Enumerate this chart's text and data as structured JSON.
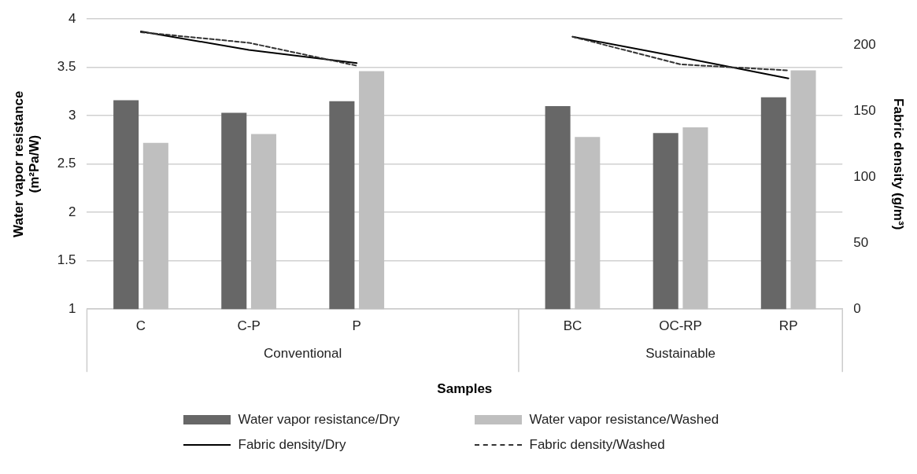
{
  "chart_data": {
    "type": "bar",
    "xlabel": "Samples",
    "ylabel": "Water vapor resistance (m²Pa/W)",
    "y2label": "Fabric density (g/m³)",
    "categories": [
      "C",
      "C-P",
      "P",
      null,
      "BC",
      "OC-RP",
      "RP"
    ],
    "annotations": [
      "Conventional",
      "Sustainable"
    ],
    "series": [
      {
        "name": "Water vapor resistance/Dry",
        "color": "#676767",
        "values": [
          3.16,
          3.03,
          3.15,
          null,
          3.1,
          2.82,
          3.19
        ]
      },
      {
        "name": "Water vapor resistance/Washed",
        "color": "#bfbfbf",
        "values": [
          2.72,
          2.81,
          3.46,
          null,
          2.78,
          2.88,
          3.47
        ]
      },
      {
        "name": "Fabric density/Dry",
        "type": "line",
        "axis": "y2",
        "color": "#000000",
        "line_style": "solid",
        "values": [
          210.6,
          196.6,
          186.6,
          null,
          206.6,
          191,
          175
        ]
      },
      {
        "name": "Fabric density/Washed",
        "type": "line",
        "axis": "y2",
        "color": "#333333",
        "line_style": "dashed",
        "values": [
          210,
          202,
          184.6,
          null,
          206.6,
          185.6,
          181
        ]
      }
    ],
    "ylim": [
      1,
      4
    ],
    "yticks": [
      1,
      1.5,
      2,
      2.5,
      3,
      3.5,
      4
    ],
    "y2lim": [
      0,
      220
    ],
    "y2ticks": [
      0,
      50,
      100,
      150,
      200
    ],
    "grid": "y",
    "legend": "bottom",
    "marker": "none"
  }
}
